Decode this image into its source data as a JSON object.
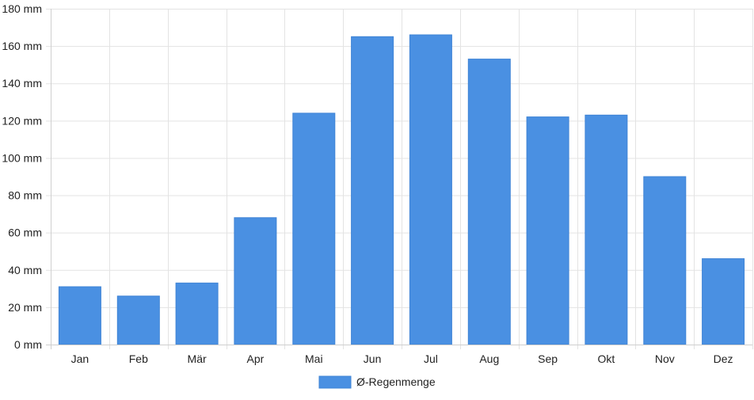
{
  "chart_data": {
    "type": "bar",
    "categories": [
      "Jan",
      "Feb",
      "Mär",
      "Apr",
      "Mai",
      "Jun",
      "Jul",
      "Aug",
      "Sep",
      "Okt",
      "Nov",
      "Dez"
    ],
    "series": [
      {
        "name": "Ø-Regenmenge",
        "values": [
          31,
          26,
          33,
          68,
          124,
          165,
          166,
          153,
          122,
          123,
          90,
          46
        ],
        "color": "#4a90e2"
      }
    ],
    "title": "",
    "xlabel": "",
    "ylabel": "",
    "ylim": [
      0,
      180
    ],
    "y_ticks": [
      0,
      20,
      40,
      60,
      80,
      100,
      120,
      140,
      160,
      180
    ],
    "y_unit": "mm",
    "grid": true,
    "legend": {
      "placement": "bottom-center"
    }
  }
}
